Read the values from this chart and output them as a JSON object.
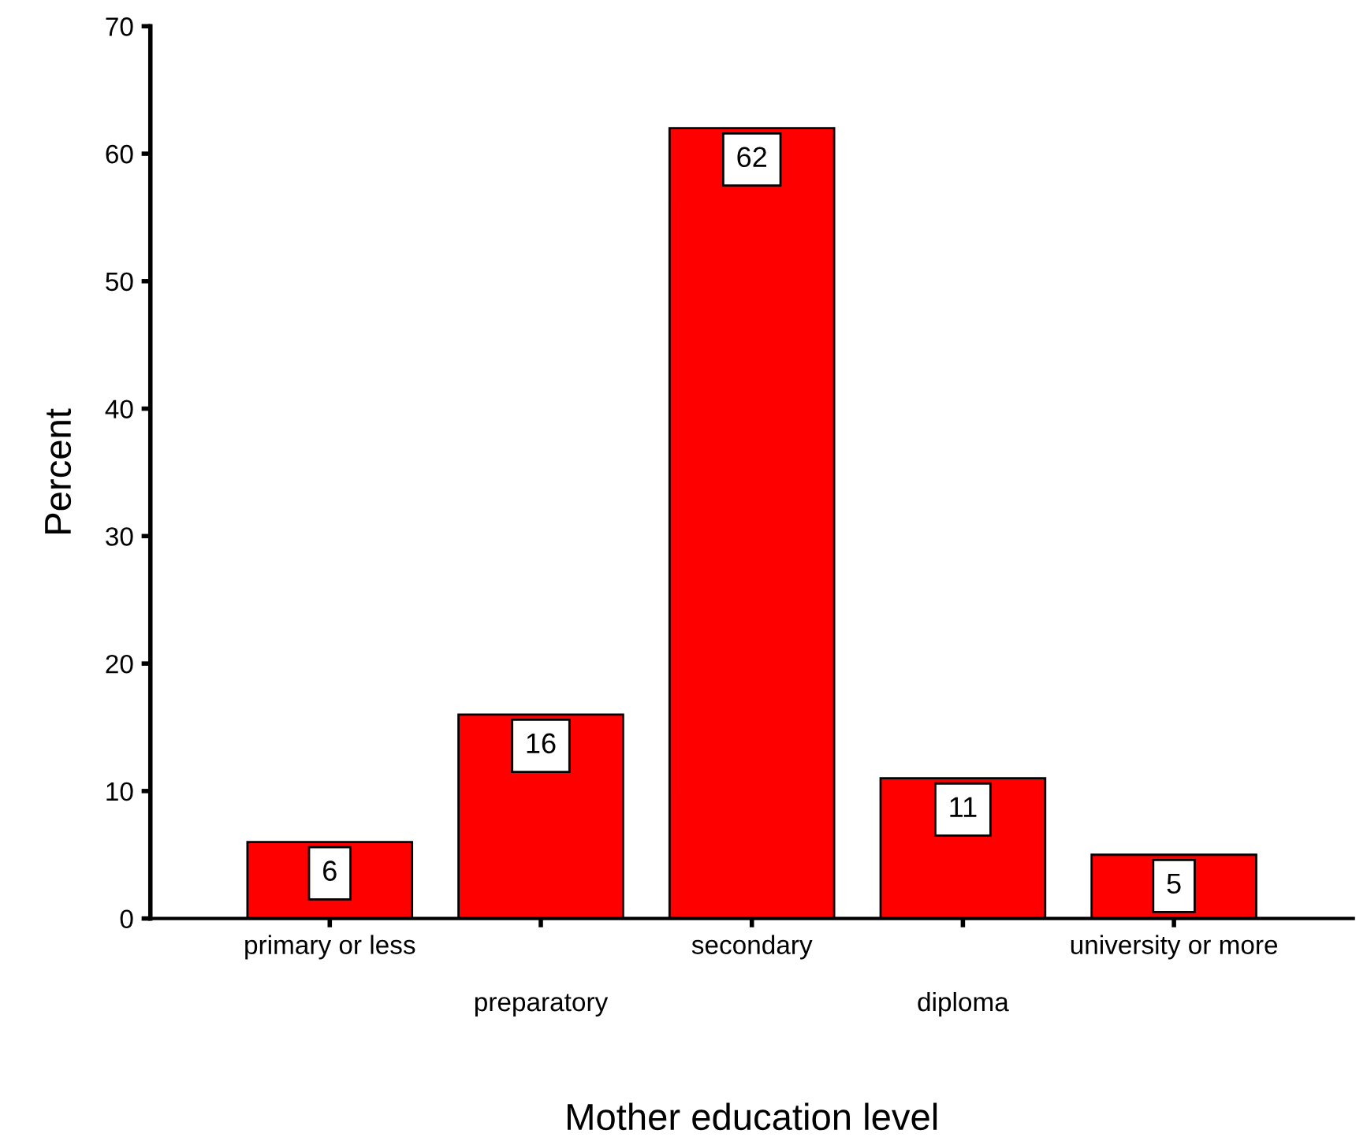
{
  "chart_data": {
    "type": "bar",
    "xlabel": "Mother education level",
    "ylabel": "Percent",
    "categories": [
      "primary or less",
      "preparatory",
      "secondary",
      "diploma",
      "university or more"
    ],
    "values": [
      6,
      16,
      62,
      11,
      5
    ],
    "color": "#ff0000",
    "data_labels": true,
    "ylim": [
      0,
      70
    ],
    "yticks": [
      0,
      10,
      20,
      30,
      40,
      50,
      60,
      70
    ],
    "grid": false
  }
}
